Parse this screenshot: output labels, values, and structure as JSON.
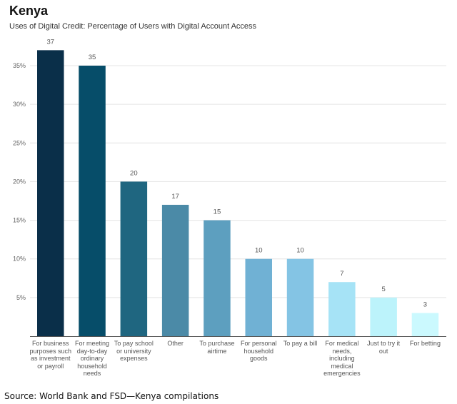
{
  "chart_data": {
    "type": "bar",
    "title": "Kenya",
    "subtitle": "Uses of Digital Credit: Percentage of Users with Digital Account Access",
    "categories": [
      "For business purposes such as investment or payroll",
      "For meeting day-to-day ordinary household needs",
      "To pay school or university expenses",
      "Other",
      "To purchase airtime",
      "For personal household goods",
      "To pay a bill",
      "For medical needs, including medical emergencies",
      "Just to try it out",
      "For betting"
    ],
    "values": [
      37,
      35,
      20,
      17,
      15,
      10,
      10,
      7,
      5,
      3
    ],
    "data_labels": [
      "37",
      "35",
      "20",
      "17",
      "15",
      "10",
      "10",
      "7",
      "5",
      "3"
    ],
    "colors": [
      "#0a2f49",
      "#064d69",
      "#1f6680",
      "#4b8aa7",
      "#5d9fbf",
      "#70b1d4",
      "#84c4e4",
      "#a6e3f6",
      "#bcf3fb",
      "#cbf9fe"
    ],
    "yticks": [
      "5%",
      "10%",
      "15%",
      "20%",
      "25%",
      "30%",
      "35%"
    ],
    "ytick_values": [
      5,
      10,
      15,
      20,
      25,
      30,
      35
    ],
    "ylim": [
      0,
      35
    ],
    "xlabel": "",
    "ylabel": "",
    "grid": true,
    "legend": "none"
  },
  "source": "Source: World Bank and FSD—Kenya compilations"
}
